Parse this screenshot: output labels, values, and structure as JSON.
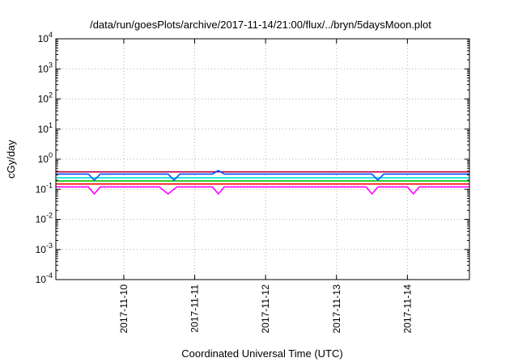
{
  "chart_data": {
    "type": "line",
    "title": "/data/run/goesPlots/archive/2017-11-14/21:00/flux/../bryn/5daysMoon.plot",
    "xlabel": "Coordinated Universal Time (UTC)",
    "ylabel": "cGy/day",
    "yscale": "log",
    "xlim": [
      "2017-11-09 01:00",
      "2017-11-14 21:00"
    ],
    "ylim": [
      0.0001,
      10000
    ],
    "grid": true,
    "x_ticks": [
      "2017-11-10",
      "2017-11-11",
      "2017-11-12",
      "2017-11-13",
      "2017-11-14"
    ],
    "y_ticks": [
      {
        "value": 0.0001,
        "base": "10",
        "exp": "-4"
      },
      {
        "value": 0.001,
        "base": "10",
        "exp": "-3"
      },
      {
        "value": 0.01,
        "base": "10",
        "exp": "-2"
      },
      {
        "value": 0.1,
        "base": "10",
        "exp": "-1"
      },
      {
        "value": 1,
        "base": "10",
        "exp": "0"
      },
      {
        "value": 10,
        "base": "10",
        "exp": "1"
      },
      {
        "value": 100,
        "base": "10",
        "exp": "2"
      },
      {
        "value": 1000,
        "base": "10",
        "exp": "3"
      },
      {
        "value": 10000,
        "base": "10",
        "exp": "4"
      }
    ],
    "series": [
      {
        "color": "#ff00ff",
        "values": [
          {
            "x": "2017-11-09 01:00",
            "y": 0.12
          },
          {
            "x": "2017-11-09 12:00",
            "y": 0.12
          },
          {
            "x": "2017-11-09 14:00",
            "y": 0.07
          },
          {
            "x": "2017-11-09 16:00",
            "y": 0.12
          },
          {
            "x": "2017-11-10 00:00",
            "y": 0.12
          },
          {
            "x": "2017-11-10 12:00",
            "y": 0.12
          },
          {
            "x": "2017-11-10 15:00",
            "y": 0.07
          },
          {
            "x": "2017-11-10 18:00",
            "y": 0.12
          },
          {
            "x": "2017-11-11 06:00",
            "y": 0.12
          },
          {
            "x": "2017-11-11 08:00",
            "y": 0.07
          },
          {
            "x": "2017-11-11 10:00",
            "y": 0.12
          },
          {
            "x": "2017-11-12 00:00",
            "y": 0.12
          },
          {
            "x": "2017-11-12 12:00",
            "y": 0.12
          },
          {
            "x": "2017-11-13 00:00",
            "y": 0.12
          },
          {
            "x": "2017-11-13 10:00",
            "y": 0.12
          },
          {
            "x": "2017-11-13 12:00",
            "y": 0.07
          },
          {
            "x": "2017-11-13 14:00",
            "y": 0.12
          },
          {
            "x": "2017-11-14 00:00",
            "y": 0.12
          },
          {
            "x": "2017-11-14 02:00",
            "y": 0.07
          },
          {
            "x": "2017-11-14 04:00",
            "y": 0.12
          },
          {
            "x": "2017-11-14 21:00",
            "y": 0.12
          }
        ]
      },
      {
        "color": "#ff0000",
        "values": [
          {
            "x": "2017-11-09 01:00",
            "y": 0.15
          },
          {
            "x": "2017-11-10 00:00",
            "y": 0.15
          },
          {
            "x": "2017-11-11 00:00",
            "y": 0.15
          },
          {
            "x": "2017-11-12 00:00",
            "y": 0.15
          },
          {
            "x": "2017-11-13 00:00",
            "y": 0.15
          },
          {
            "x": "2017-11-14 00:00",
            "y": 0.15
          },
          {
            "x": "2017-11-14 21:00",
            "y": 0.15
          }
        ]
      },
      {
        "color": "#00c000",
        "values": [
          {
            "x": "2017-11-09 01:00",
            "y": 0.19
          },
          {
            "x": "2017-11-10 00:00",
            "y": 0.19
          },
          {
            "x": "2017-11-11 00:00",
            "y": 0.19
          },
          {
            "x": "2017-11-12 00:00",
            "y": 0.19
          },
          {
            "x": "2017-11-13 00:00",
            "y": 0.19
          },
          {
            "x": "2017-11-14 00:00",
            "y": 0.19
          },
          {
            "x": "2017-11-14 21:00",
            "y": 0.19
          }
        ]
      },
      {
        "color": "#00e0e0",
        "values": [
          {
            "x": "2017-11-09 01:00",
            "y": 0.24
          },
          {
            "x": "2017-11-10 00:00",
            "y": 0.24
          },
          {
            "x": "2017-11-11 00:00",
            "y": 0.24
          },
          {
            "x": "2017-11-12 00:00",
            "y": 0.24
          },
          {
            "x": "2017-11-13 00:00",
            "y": 0.24
          },
          {
            "x": "2017-11-14 00:00",
            "y": 0.24
          },
          {
            "x": "2017-11-14 21:00",
            "y": 0.24
          }
        ]
      },
      {
        "color": "#c00040",
        "values": [
          {
            "x": "2017-11-09 01:00",
            "y": 0.38
          },
          {
            "x": "2017-11-10 00:00",
            "y": 0.38
          },
          {
            "x": "2017-11-11 00:00",
            "y": 0.38
          },
          {
            "x": "2017-11-12 00:00",
            "y": 0.38
          },
          {
            "x": "2017-11-13 00:00",
            "y": 0.38
          },
          {
            "x": "2017-11-14 00:00",
            "y": 0.38
          },
          {
            "x": "2017-11-14 21:00",
            "y": 0.38
          }
        ]
      },
      {
        "color": "#0050ff",
        "values": [
          {
            "x": "2017-11-09 01:00",
            "y": 0.32
          },
          {
            "x": "2017-11-09 12:00",
            "y": 0.32
          },
          {
            "x": "2017-11-09 14:00",
            "y": 0.2
          },
          {
            "x": "2017-11-09 16:00",
            "y": 0.32
          },
          {
            "x": "2017-11-10 00:00",
            "y": 0.32
          },
          {
            "x": "2017-11-10 15:00",
            "y": 0.32
          },
          {
            "x": "2017-11-10 17:00",
            "y": 0.2
          },
          {
            "x": "2017-11-10 19:00",
            "y": 0.32
          },
          {
            "x": "2017-11-11 06:00",
            "y": 0.32
          },
          {
            "x": "2017-11-11 08:00",
            "y": 0.42
          },
          {
            "x": "2017-11-11 10:00",
            "y": 0.32
          },
          {
            "x": "2017-11-12 00:00",
            "y": 0.32
          },
          {
            "x": "2017-11-13 00:00",
            "y": 0.32
          },
          {
            "x": "2017-11-13 12:00",
            "y": 0.32
          },
          {
            "x": "2017-11-13 14:00",
            "y": 0.2
          },
          {
            "x": "2017-11-13 16:00",
            "y": 0.32
          },
          {
            "x": "2017-11-14 00:00",
            "y": 0.32
          },
          {
            "x": "2017-11-14 21:00",
            "y": 0.32
          }
        ]
      }
    ]
  }
}
